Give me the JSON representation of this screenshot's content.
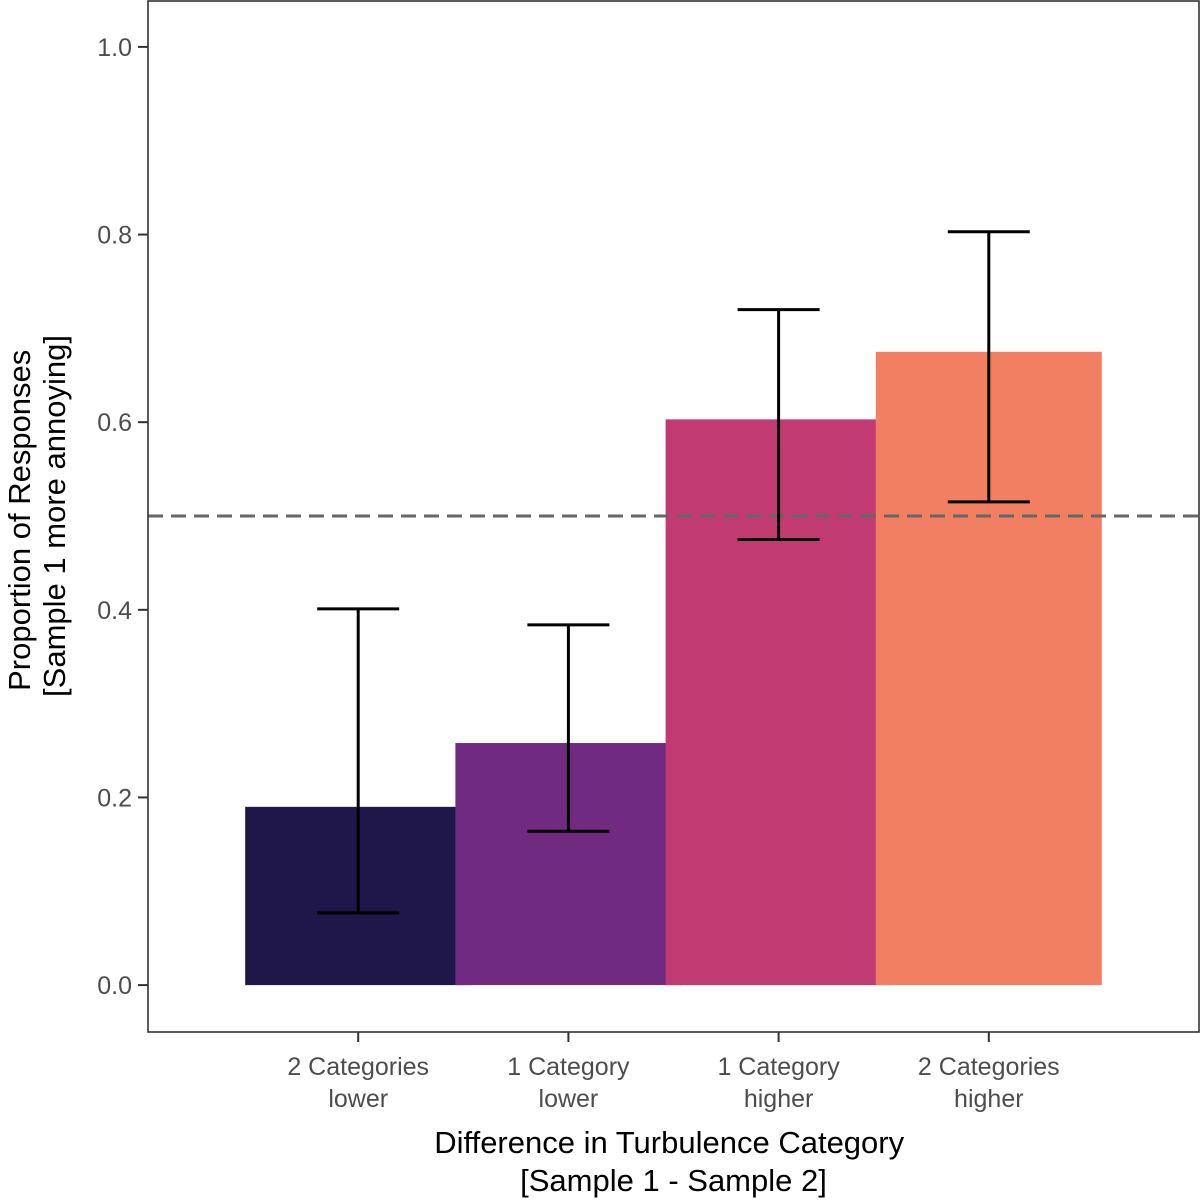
{
  "chart_data": {
    "type": "bar",
    "title": "",
    "categories": [
      [
        "2 Categories",
        "lower"
      ],
      [
        "1 Category",
        "lower"
      ],
      [
        "1 Category",
        "higher"
      ],
      [
        "2 Categories",
        "higher"
      ]
    ],
    "values": [
      0.19,
      0.258,
      0.603,
      0.675
    ],
    "error_lower": [
      0.077,
      0.164,
      0.475,
      0.515
    ],
    "error_upper": [
      0.401,
      0.384,
      0.72,
      0.803
    ],
    "bar_colors": [
      "#1f164a",
      "#702a80",
      "#c23a72",
      "#f37f62"
    ],
    "reference_line": 0.5,
    "reference_line_color": "#666666",
    "xlabel": [
      "Difference in Turbulence Category",
      "[Sample 1 - Sample 2]"
    ],
    "ylabel": [
      "Proportion of Responses",
      "[Sample 1 more annoying]"
    ],
    "ylim": [
      -0.05,
      1.05
    ],
    "yticks": [
      0.0,
      0.2,
      0.4,
      0.6,
      0.8,
      1.0
    ],
    "ytick_labels": [
      "0.0",
      "0.2",
      "0.4",
      "0.6",
      "0.8",
      "1.0"
    ],
    "grid": false,
    "legend": "none"
  }
}
